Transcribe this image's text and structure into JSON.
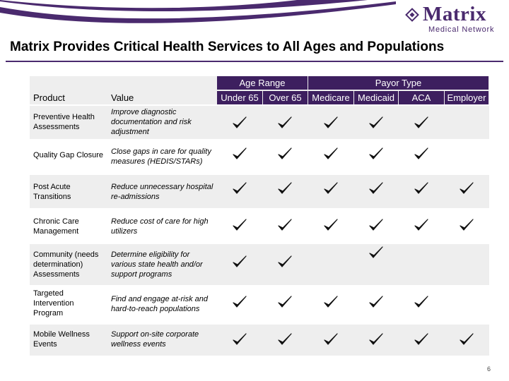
{
  "header": {
    "logo_word": "Matrix",
    "logo_sub": "Medical Network",
    "title": "Matrix Provides Critical Health Services to All Ages and Populations"
  },
  "table": {
    "group_headers": {
      "age": "Age Range",
      "payor": "Payor Type"
    },
    "columns": {
      "product": "Product",
      "value": "Value",
      "under65": "Under 65",
      "over65": "Over 65",
      "medicare": "Medicare",
      "medicaid": "Medicaid",
      "aca": "ACA",
      "employer": "Employer"
    },
    "rows": [
      {
        "product": "Preventive Health Assessments",
        "value": "Improve diagnostic documentation and risk adjustment",
        "checks": [
          true,
          true,
          true,
          true,
          true,
          false
        ]
      },
      {
        "product": "Quality Gap Closure",
        "value": "Close gaps in care for quality measures (HEDIS/STARs)",
        "checks": [
          true,
          true,
          true,
          true,
          true,
          false
        ]
      },
      {
        "product": "Post Acute Transitions",
        "value": "Reduce unnecessary hospital re-admissions",
        "checks": [
          true,
          true,
          true,
          true,
          true,
          true
        ]
      },
      {
        "product": "Chronic Care Management",
        "value": "Reduce cost of care for high utilizers",
        "checks": [
          true,
          true,
          true,
          true,
          true,
          true
        ]
      },
      {
        "product": "Community (needs determination) Assessments",
        "value": "Determine eligibility for various state health and/or support programs",
        "checks": [
          true,
          true,
          false,
          true,
          false,
          false
        ]
      },
      {
        "product": "Targeted Intervention Program",
        "value": "Find and engage at-risk and hard-to-reach populations",
        "checks": [
          true,
          true,
          true,
          true,
          true,
          false
        ]
      },
      {
        "product": "Mobile Wellness Events",
        "value": "Support on-site corporate wellness events",
        "checks": [
          true,
          true,
          true,
          true,
          true,
          true
        ]
      }
    ]
  },
  "footer": {
    "page_number": "6"
  }
}
